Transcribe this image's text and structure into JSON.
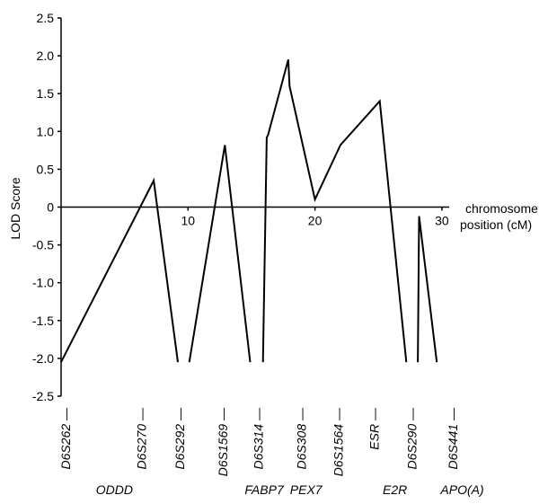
{
  "chart_data": {
    "type": "line",
    "ylabel": "LOD Score",
    "xlabel_line1": "chromosome",
    "xlabel_line2": "position (cM)",
    "xlim": [
      0,
      30
    ],
    "ylim": [
      -2.5,
      2.5
    ],
    "x_ticks": [
      10,
      20,
      30
    ],
    "y_ticks": [
      2.5,
      2.0,
      1.5,
      1.0,
      0.5,
      0,
      -0.5,
      -1.0,
      -1.5,
      -2.0,
      -2.5
    ],
    "y_tick_labels": [
      "2.5",
      "2.0",
      "1.5",
      "1.0",
      "0.5",
      "0",
      "-0.5",
      "-1.0",
      "-1.5",
      "-2.0",
      "-2.5"
    ],
    "grid": false,
    "segments": [
      [
        [
          0.0,
          -2.05
        ],
        [
          7.3,
          0.35
        ],
        [
          9.2,
          -2.05
        ]
      ],
      [
        [
          10.1,
          -2.05
        ],
        [
          12.9,
          0.82
        ],
        [
          14.9,
          -2.05
        ]
      ],
      [
        [
          15.9,
          -2.05
        ],
        [
          16.2,
          0.92
        ],
        [
          16.3,
          0.95
        ],
        [
          17.9,
          1.95
        ],
        [
          18.0,
          1.6
        ],
        [
          20.0,
          0.1
        ],
        [
          22.0,
          0.82
        ],
        [
          25.1,
          1.4
        ],
        [
          27.2,
          -2.05
        ]
      ],
      [
        [
          28.1,
          -2.05
        ],
        [
          28.2,
          -0.12
        ],
        [
          29.6,
          -2.05
        ]
      ]
    ],
    "markers": [
      {
        "name": "D6S262",
        "x": 0.7
      },
      {
        "name": "D6S270",
        "x": 6.7
      },
      {
        "name": "D6S292",
        "x": 9.7
      },
      {
        "name": "D6S1569",
        "x": 13.1
      },
      {
        "name": "D6S314",
        "x": 15.9
      },
      {
        "name": "D6S308",
        "x": 19.3
      },
      {
        "name": "D6S1564",
        "x": 22.2
      },
      {
        "name": "ESR",
        "x": 25.0
      },
      {
        "name": "D6S290",
        "x": 28.0
      },
      {
        "name": "D6S441",
        "x": 31.2
      }
    ],
    "genes": [
      {
        "name": "ODDD",
        "x": 4.2
      },
      {
        "name": "FABP7",
        "x": 16.0
      },
      {
        "name": "PEX7",
        "x": 19.3
      },
      {
        "name": "E2R",
        "x": 26.3
      },
      {
        "name": "APO(A)",
        "x": 31.6
      }
    ]
  }
}
